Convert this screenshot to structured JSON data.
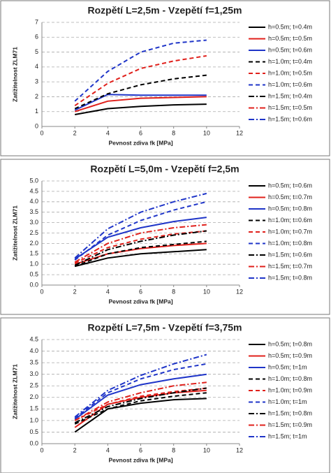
{
  "chart_data": [
    {
      "type": "line",
      "title": "Rozpětí L=2,5m - Vzepětí f=1,25m",
      "ylabel": "Zatížitelnost ZLM71",
      "xlabel": "Pevnost zdiva fk [MPa]",
      "x": [
        2,
        4,
        6,
        8,
        10
      ],
      "xlim": [
        0,
        12
      ],
      "xticks": [
        0,
        2,
        4,
        6,
        8,
        10,
        12
      ],
      "ylim": [
        0,
        7
      ],
      "yticks": [
        0,
        1,
        2,
        3,
        4,
        5,
        6,
        7
      ],
      "grid": true,
      "series": [
        {
          "name": "h=0.5m; t=0.4m",
          "color": "#000000",
          "dash": "solid",
          "values": [
            0.8,
            1.2,
            1.35,
            1.45,
            1.5
          ]
        },
        {
          "name": "h=0.5m; t=0.5m",
          "color": "#e0201b",
          "dash": "solid",
          "values": [
            1.0,
            1.7,
            1.9,
            1.95,
            2.0
          ]
        },
        {
          "name": "h=0.5m; t=0.6m",
          "color": "#1f35c8",
          "dash": "solid",
          "values": [
            1.1,
            2.15,
            2.1,
            2.1,
            2.1
          ]
        },
        {
          "name": "h=1.0m; t=0.4m",
          "color": "#000000",
          "dash": "dash",
          "values": [
            1.2,
            2.2,
            2.8,
            3.2,
            3.45
          ]
        },
        {
          "name": "h=1.0m; t=0.5m",
          "color": "#e0201b",
          "dash": "dash",
          "values": [
            1.4,
            2.9,
            3.9,
            4.4,
            4.75
          ]
        },
        {
          "name": "h=1.0m; t=0.6m",
          "color": "#1f35c8",
          "dash": "dash",
          "values": [
            1.7,
            3.7,
            5.0,
            5.6,
            5.8
          ]
        },
        {
          "name": "h=1.5m; t=0.4m",
          "color": "#000000",
          "dash": "dashdot",
          "values": [
            null,
            null,
            null,
            null,
            null
          ]
        },
        {
          "name": "h=1.5m; t=0.5m",
          "color": "#e0201b",
          "dash": "dashdot",
          "values": [
            null,
            null,
            null,
            null,
            null
          ]
        },
        {
          "name": "h=1.5m; t=0.6m",
          "color": "#1f35c8",
          "dash": "dashdot",
          "values": [
            null,
            null,
            null,
            null,
            null
          ]
        }
      ]
    },
    {
      "type": "line",
      "title": "Rozpětí L=5,0m - Vzepětí f=2,5m",
      "ylabel": "Zatížitelnost ZLM71",
      "xlabel": "Pevnost zdiva fk [MPa]",
      "x": [
        2,
        4,
        6,
        8,
        10
      ],
      "xlim": [
        0,
        12
      ],
      "xticks": [
        0,
        2,
        4,
        6,
        8,
        10,
        12
      ],
      "ylim": [
        0,
        5
      ],
      "yticks": [
        {
          "value": 0,
          "label": "0.0"
        },
        0.5,
        {
          "value": 1,
          "label": "1.0"
        },
        1.5,
        {
          "value": 2,
          "label": "2.0"
        },
        2.5,
        {
          "value": 3,
          "label": "3.0"
        },
        3.5,
        {
          "value": 4,
          "label": "4.0"
        },
        4.5,
        {
          "value": 5,
          "label": "5.0"
        }
      ],
      "grid": true,
      "series": [
        {
          "name": "h=0.5m; t=0.6m",
          "color": "#000000",
          "dash": "solid",
          "values": [
            0.9,
            1.3,
            1.5,
            1.6,
            1.7
          ]
        },
        {
          "name": "h=0.5m; t=0.7m",
          "color": "#e0201b",
          "dash": "solid",
          "values": [
            1.0,
            1.5,
            1.75,
            1.9,
            2.0
          ]
        },
        {
          "name": "h=0.5m; t=0.8m",
          "color": "#1f35c8",
          "dash": "solid",
          "values": [
            1.25,
            2.3,
            2.75,
            3.05,
            3.25
          ]
        },
        {
          "name": "h=1.0m; t=0.6m",
          "color": "#000000",
          "dash": "dash",
          "values": [
            0.9,
            1.5,
            1.8,
            1.95,
            2.1
          ]
        },
        {
          "name": "h=1.0m; t=0.7m",
          "color": "#e0201b",
          "dash": "dash",
          "values": [
            1.05,
            1.8,
            2.2,
            2.45,
            2.6
          ]
        },
        {
          "name": "h=1.0m; t=0.8m",
          "color": "#1f35c8",
          "dash": "dash",
          "values": [
            1.2,
            2.4,
            3.1,
            3.6,
            4.0
          ]
        },
        {
          "name": "h=1.5m; t=0.6m",
          "color": "#000000",
          "dash": "dashdot",
          "values": [
            0.95,
            1.7,
            2.1,
            2.4,
            2.6
          ]
        },
        {
          "name": "h=1.5m; t=0.7m",
          "color": "#e0201b",
          "dash": "dashdot",
          "values": [
            1.1,
            2.0,
            2.5,
            2.75,
            2.9
          ]
        },
        {
          "name": "h=1.5m; t=0.8m",
          "color": "#1f35c8",
          "dash": "dashdot",
          "values": [
            1.3,
            2.7,
            3.5,
            4.0,
            4.4
          ]
        }
      ]
    },
    {
      "type": "line",
      "title": "Rozpětí L=7,5m - Vzepětí f=3,75m",
      "ylabel": "Zatížitelnost ZLM71",
      "xlabel": "Pevnost zdiva fk [MPa]",
      "x": [
        2,
        4,
        6,
        8,
        10
      ],
      "xlim": [
        0,
        12
      ],
      "xticks": [
        0,
        2,
        4,
        6,
        8,
        10,
        12
      ],
      "ylim": [
        0,
        4.5
      ],
      "yticks": [
        {
          "value": 0,
          "label": "0.0"
        },
        0.5,
        {
          "value": 1,
          "label": "1.0"
        },
        1.5,
        {
          "value": 2,
          "label": "2.0"
        },
        2.5,
        {
          "value": 3,
          "label": "3.0"
        },
        3.5,
        {
          "value": 4,
          "label": "4.0"
        },
        4.5
      ],
      "grid": true,
      "series": [
        {
          "name": "h=0.5m; t=0.8m",
          "color": "#000000",
          "dash": "solid",
          "values": [
            0.5,
            1.5,
            1.75,
            1.9,
            1.95
          ]
        },
        {
          "name": "h=0.5m; t=0.9m",
          "color": "#e0201b",
          "dash": "solid",
          "values": [
            0.7,
            1.7,
            2.0,
            2.2,
            2.3
          ]
        },
        {
          "name": "h=0.5m; t=1m",
          "color": "#1f35c8",
          "dash": "solid",
          "values": [
            1.05,
            2.1,
            2.55,
            2.8,
            3.0
          ]
        },
        {
          "name": "h=1.0m; t=0.8m",
          "color": "#000000",
          "dash": "dash",
          "values": [
            0.85,
            1.5,
            1.85,
            2.05,
            2.2
          ]
        },
        {
          "name": "h=1.0m; t=0.9m",
          "color": "#e0201b",
          "dash": "dash",
          "values": [
            1.0,
            1.7,
            2.05,
            2.25,
            2.4
          ]
        },
        {
          "name": "h=1.0m; t=1m",
          "color": "#1f35c8",
          "dash": "dash",
          "values": [
            1.1,
            2.2,
            2.8,
            3.2,
            3.45
          ]
        },
        {
          "name": "h=1.5m; t=0.8m",
          "color": "#000000",
          "dash": "dashdot",
          "values": [
            0.9,
            1.6,
            1.95,
            2.2,
            2.4
          ]
        },
        {
          "name": "h=1.5m; t=0.9m",
          "color": "#e0201b",
          "dash": "dashdot",
          "values": [
            1.0,
            1.8,
            2.2,
            2.5,
            2.65
          ]
        },
        {
          "name": "h=1.5m; t=1m",
          "color": "#1f35c8",
          "dash": "dashdot",
          "values": [
            1.15,
            2.3,
            2.95,
            3.45,
            3.85
          ]
        }
      ]
    }
  ]
}
